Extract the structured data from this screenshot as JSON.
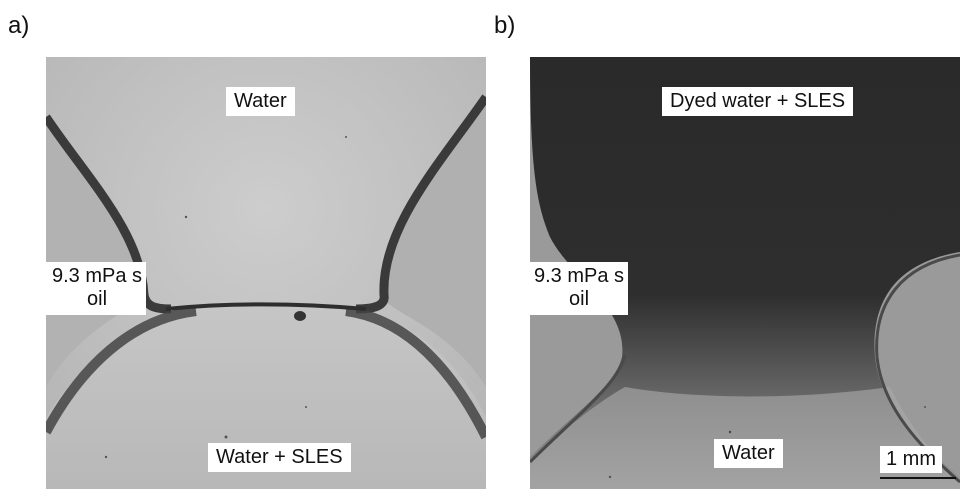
{
  "figure": {
    "panel_a": {
      "letter": "a)",
      "label_top": "Water",
      "label_left_line1": "9.3 mPa s",
      "label_left_line2": "oil",
      "label_bottom": "Water + SLES"
    },
    "panel_b": {
      "letter": "b)",
      "label_top": "Dyed water + SLES",
      "label_left_line1": "9.3 mPa s",
      "label_left_line2": "oil",
      "label_bottom": "Water",
      "scale_label": "1 mm"
    }
  }
}
